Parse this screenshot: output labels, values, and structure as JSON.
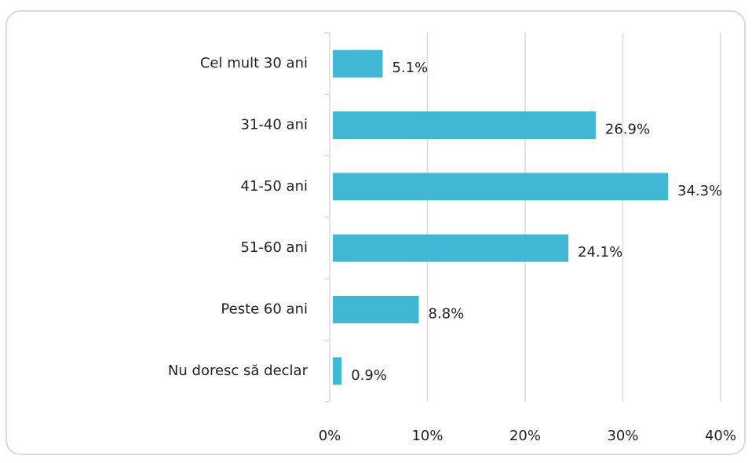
{
  "chart_data": {
    "type": "barh",
    "categories": [
      "Cel mult 30 ani",
      "31-40 ani",
      "41-50 ani",
      "51-60 ani",
      "Peste 60 ani",
      "Nu doresc să declar"
    ],
    "values": [
      5.1,
      26.9,
      34.3,
      24.1,
      8.8,
      0.9
    ],
    "value_labels": [
      "5.1%",
      "26.9%",
      "34.3%",
      "24.1%",
      "8.8%",
      "0.9%"
    ],
    "color": "#41b8d3",
    "xlim": [
      0,
      40
    ],
    "xticks": [
      {
        "value": 0,
        "label": "0%"
      },
      {
        "value": 10,
        "label": "10%"
      },
      {
        "value": 20,
        "label": "20%"
      },
      {
        "value": 30,
        "label": "30%"
      },
      {
        "value": 40,
        "label": "40%"
      }
    ],
    "grid": true
  }
}
